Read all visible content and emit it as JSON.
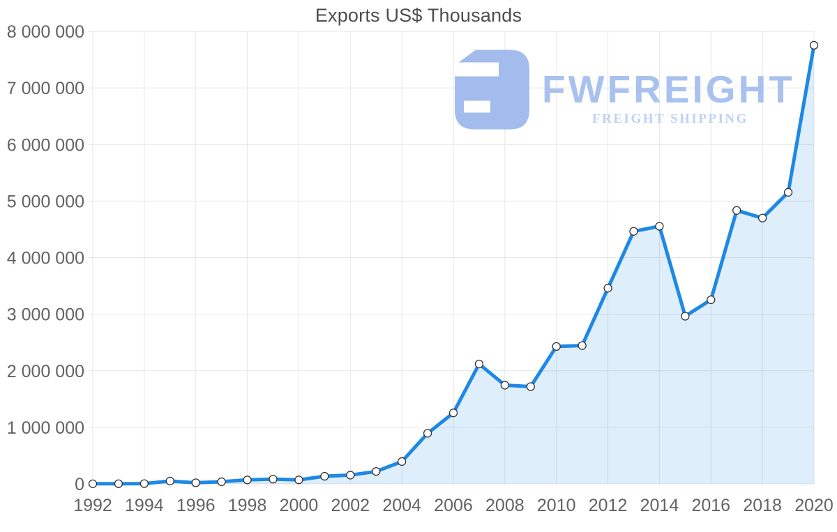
{
  "chart_data": {
    "type": "area",
    "title": "Exports US$ Thousands",
    "xlabel": "",
    "ylabel": "",
    "x": [
      1992,
      1993,
      1994,
      1995,
      1996,
      1997,
      1998,
      1999,
      2000,
      2001,
      2002,
      2003,
      2004,
      2005,
      2006,
      2007,
      2008,
      2009,
      2010,
      2011,
      2012,
      2013,
      2014,
      2015,
      2016,
      2017,
      2018,
      2019,
      2020
    ],
    "values": [
      2000,
      3000,
      5000,
      50000,
      20000,
      38000,
      70000,
      85000,
      70000,
      135000,
      155000,
      220000,
      395000,
      895000,
      1255000,
      2120000,
      1745000,
      1720000,
      2430000,
      2445000,
      3460000,
      4465000,
      4555000,
      2965000,
      3255000,
      4835000,
      4700000,
      5155000,
      7755000
    ],
    "xlim": [
      1992,
      2020
    ],
    "ylim": [
      0,
      8000000
    ],
    "x_tick_years": [
      1992,
      1994,
      1996,
      1998,
      2000,
      2002,
      2004,
      2006,
      2008,
      2010,
      2012,
      2014,
      2016,
      2018,
      2020
    ],
    "x_tick_labels": [
      "1992",
      "1994",
      "1996",
      "1998",
      "2000",
      "2002",
      "2004",
      "2006",
      "2008",
      "2010",
      "2012",
      "2014",
      "2016",
      "2018",
      "2020"
    ],
    "y_ticks": [
      0,
      1000000,
      2000000,
      3000000,
      4000000,
      5000000,
      6000000,
      7000000,
      8000000
    ],
    "y_tick_labels": [
      "0",
      "1 000 000",
      "2 000 000",
      "3 000 000",
      "4 000 000",
      "5 000 000",
      "6 000 000",
      "7 000 000",
      "8 000 000"
    ],
    "grid": true,
    "legend_position": "none",
    "line_color": "#1e88e5",
    "area_fill": "rgba(30,136,229,0.14)",
    "marker_fill": "#ffffff",
    "marker_stroke": "#333333",
    "grid_color": "#e6e6e6",
    "label_color": "#636363",
    "title_color": "#4d4d4d"
  },
  "watermark": {
    "brand": "FWFREIGHT",
    "tagline": "FREIGHT SHIPPING",
    "brand_color": "#a9c1ef",
    "tagline_color": "#bdd1f4",
    "logo_color": "#a3bced"
  }
}
